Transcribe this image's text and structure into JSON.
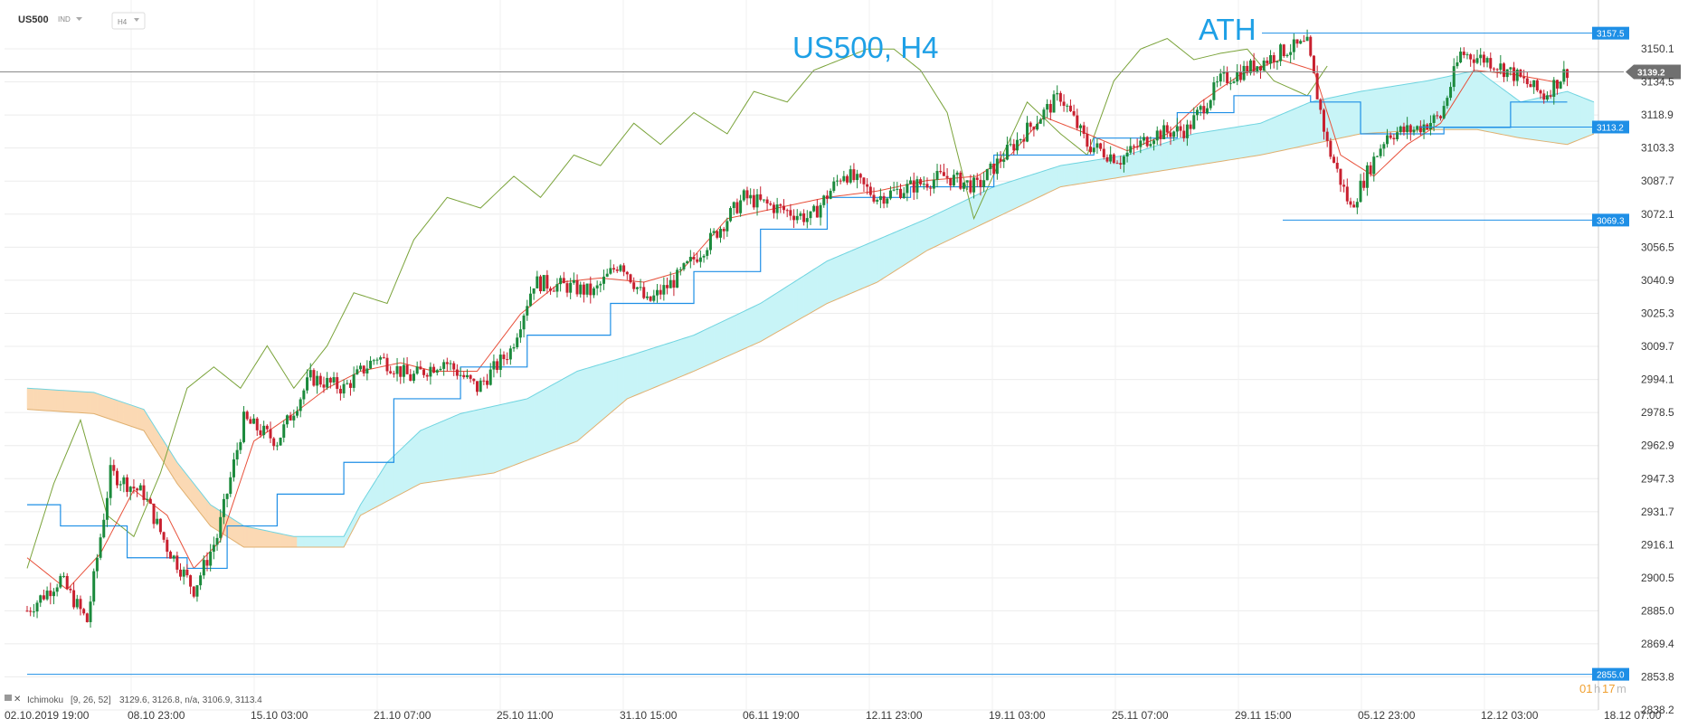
{
  "toolbar": {
    "symbol": "US500",
    "instrument_type": "IND",
    "timeframe": "H4"
  },
  "annotations": {
    "title": "US500, H4",
    "ath": "ATH"
  },
  "legend": {
    "indicator": "Ichimoku",
    "params": "[9, 26, 52]",
    "values": "3129.6,  3126.8,  n/a,  3106.9,  3113.4"
  },
  "countdown": {
    "hours": "01",
    "h_unit": "h",
    "minutes": "17",
    "m_unit": "m"
  },
  "colors": {
    "up_candle": "#1b8a3c",
    "down_candle": "#c8202f",
    "tenkan": "#e8503a",
    "kijun": "#1e8fe6",
    "chikou": "#7aa33a",
    "cloud_bull": "#c8f4f7",
    "cloud_bear": "#fbd9b4",
    "span_a": "#6fd4e0",
    "span_b": "#e0b070",
    "level_line": "#1e8fe6",
    "price_tag": "#1e8fe6",
    "current_tag": "#707070",
    "title": "#1ea0e6"
  },
  "chart_data": {
    "type": "candlestick",
    "title": "US500, H4",
    "yticks": [
      3150.1,
      3134.5,
      3118.9,
      3103.3,
      3087.7,
      3072.1,
      3056.5,
      3040.9,
      3025.3,
      3009.7,
      2994.1,
      2978.5,
      2962.9,
      2947.3,
      2931.7,
      2916.1,
      2900.5,
      2885.0,
      2869.4,
      2853.8,
      2838.2
    ],
    "ylim": [
      2838.2,
      3150.1
    ],
    "x_date_labels": [
      "02.10.2019  19:00",
      "08.10  23:00",
      "15.10  03:00",
      "21.10  07:00",
      "25.10  11:00",
      "31.10  15:00",
      "06.11  19:00",
      "12.11  23:00",
      "19.11  03:00",
      "25.11  07:00",
      "29.11  15:00",
      "05.12  23:00",
      "12.12  03:00",
      "18.12  07:00"
    ],
    "current_price": 3139.2,
    "horizontal_levels": [
      3157.5,
      3113.2,
      3069.3,
      2855.0
    ],
    "close_path": [
      [
        0,
        2885
      ],
      [
        10,
        2900
      ],
      [
        18,
        2880
      ],
      [
        25,
        2950
      ],
      [
        35,
        2940
      ],
      [
        42,
        2915
      ],
      [
        50,
        2895
      ],
      [
        57,
        2920
      ],
      [
        65,
        2975
      ],
      [
        75,
        2965
      ],
      [
        85,
        2995
      ],
      [
        95,
        2990
      ],
      [
        105,
        3005
      ],
      [
        115,
        2995
      ],
      [
        125,
        3003
      ],
      [
        135,
        2990
      ],
      [
        145,
        3008
      ],
      [
        152,
        3040
      ],
      [
        162,
        3038
      ],
      [
        170,
        3035
      ],
      [
        178,
        3050
      ],
      [
        186,
        3030
      ],
      [
        195,
        3042
      ],
      [
        205,
        3060
      ],
      [
        215,
        3080
      ],
      [
        225,
        3075
      ],
      [
        235,
        3070
      ],
      [
        245,
        3092
      ],
      [
        255,
        3080
      ],
      [
        265,
        3085
      ],
      [
        275,
        3090
      ],
      [
        285,
        3085
      ],
      [
        292,
        3098
      ],
      [
        300,
        3112
      ],
      [
        310,
        3128
      ],
      [
        318,
        3105
      ],
      [
        328,
        3098
      ],
      [
        338,
        3110
      ],
      [
        348,
        3112
      ],
      [
        358,
        3135
      ],
      [
        368,
        3142
      ],
      [
        378,
        3150
      ],
      [
        384,
        3152
      ],
      [
        390,
        3105
      ],
      [
        397,
        3075
      ],
      [
        403,
        3095
      ],
      [
        408,
        3110
      ],
      [
        416,
        3112
      ],
      [
        424,
        3118
      ],
      [
        430,
        3148
      ],
      [
        438,
        3145
      ],
      [
        446,
        3138
      ],
      [
        455,
        3128
      ],
      [
        462,
        3140
      ]
    ],
    "tenkan_path": [
      [
        0,
        2910
      ],
      [
        12,
        2895
      ],
      [
        22,
        2912
      ],
      [
        32,
        2942
      ],
      [
        42,
        2930
      ],
      [
        50,
        2905
      ],
      [
        58,
        2918
      ],
      [
        68,
        2965
      ],
      [
        80,
        2978
      ],
      [
        90,
        2990
      ],
      [
        100,
        2998
      ],
      [
        112,
        3002
      ],
      [
        122,
        2998
      ],
      [
        135,
        2998
      ],
      [
        148,
        3025
      ],
      [
        160,
        3040
      ],
      [
        172,
        3042
      ],
      [
        185,
        3040
      ],
      [
        196,
        3045
      ],
      [
        210,
        3070
      ],
      [
        225,
        3075
      ],
      [
        240,
        3080
      ],
      [
        255,
        3083
      ],
      [
        270,
        3088
      ],
      [
        285,
        3090
      ],
      [
        295,
        3100
      ],
      [
        305,
        3118
      ],
      [
        318,
        3110
      ],
      [
        330,
        3102
      ],
      [
        342,
        3110
      ],
      [
        352,
        3125
      ],
      [
        364,
        3138
      ],
      [
        376,
        3145
      ],
      [
        386,
        3140
      ],
      [
        394,
        3100
      ],
      [
        404,
        3090
      ],
      [
        414,
        3105
      ],
      [
        424,
        3115
      ],
      [
        434,
        3140
      ],
      [
        446,
        3138
      ],
      [
        460,
        3134
      ]
    ],
    "kijun_path": [
      [
        0,
        2935
      ],
      [
        10,
        2935
      ],
      [
        10,
        2925
      ],
      [
        30,
        2925
      ],
      [
        30,
        2910
      ],
      [
        48,
        2910
      ],
      [
        48,
        2905
      ],
      [
        60,
        2905
      ],
      [
        60,
        2925
      ],
      [
        75,
        2925
      ],
      [
        75,
        2940
      ],
      [
        95,
        2940
      ],
      [
        95,
        2955
      ],
      [
        110,
        2955
      ],
      [
        110,
        2985
      ],
      [
        130,
        2985
      ],
      [
        130,
        3000
      ],
      [
        150,
        3000
      ],
      [
        150,
        3015
      ],
      [
        175,
        3015
      ],
      [
        175,
        3030
      ],
      [
        200,
        3030
      ],
      [
        200,
        3045
      ],
      [
        220,
        3045
      ],
      [
        220,
        3065
      ],
      [
        240,
        3065
      ],
      [
        240,
        3080
      ],
      [
        265,
        3080
      ],
      [
        265,
        3085
      ],
      [
        290,
        3085
      ],
      [
        290,
        3100
      ],
      [
        320,
        3100
      ],
      [
        320,
        3108
      ],
      [
        345,
        3108
      ],
      [
        345,
        3120
      ],
      [
        362,
        3120
      ],
      [
        362,
        3128
      ],
      [
        385,
        3128
      ],
      [
        385,
        3125
      ],
      [
        400,
        3125
      ],
      [
        400,
        3110
      ],
      [
        425,
        3110
      ],
      [
        425,
        3113
      ],
      [
        445,
        3113
      ],
      [
        445,
        3125
      ],
      [
        462,
        3125
      ]
    ],
    "chikou_path": [
      [
        0,
        2905
      ],
      [
        8,
        2945
      ],
      [
        16,
        2975
      ],
      [
        24,
        2930
      ],
      [
        32,
        2920
      ],
      [
        40,
        2950
      ],
      [
        48,
        2990
      ],
      [
        56,
        3000
      ],
      [
        64,
        2990
      ],
      [
        72,
        3010
      ],
      [
        80,
        2990
      ],
      [
        90,
        3010
      ],
      [
        98,
        3035
      ],
      [
        108,
        3030
      ],
      [
        116,
        3060
      ],
      [
        126,
        3080
      ],
      [
        136,
        3075
      ],
      [
        146,
        3090
      ],
      [
        154,
        3080
      ],
      [
        164,
        3100
      ],
      [
        172,
        3095
      ],
      [
        182,
        3115
      ],
      [
        190,
        3105
      ],
      [
        200,
        3120
      ],
      [
        210,
        3110
      ],
      [
        218,
        3130
      ],
      [
        228,
        3125
      ],
      [
        236,
        3140
      ],
      [
        244,
        3145
      ],
      [
        252,
        3150
      ],
      [
        260,
        3150
      ],
      [
        268,
        3140
      ],
      [
        276,
        3120
      ],
      [
        284,
        3070
      ],
      [
        292,
        3098
      ],
      [
        300,
        3125
      ],
      [
        310,
        3110
      ],
      [
        318,
        3100
      ],
      [
        326,
        3135
      ],
      [
        334,
        3150
      ],
      [
        342,
        3155
      ],
      [
        350,
        3145
      ],
      [
        358,
        3148
      ],
      [
        366,
        3150
      ],
      [
        374,
        3135
      ],
      [
        384,
        3128
      ],
      [
        390,
        3142
      ]
    ],
    "cloud_span_a": [
      [
        0,
        2990
      ],
      [
        20,
        2988
      ],
      [
        35,
        2980
      ],
      [
        45,
        2955
      ],
      [
        55,
        2935
      ],
      [
        65,
        2925
      ],
      [
        80,
        2920
      ],
      [
        95,
        2920
      ],
      [
        100,
        2935
      ],
      [
        108,
        2955
      ],
      [
        118,
        2970
      ],
      [
        130,
        2978
      ],
      [
        150,
        2985
      ],
      [
        165,
        2998
      ],
      [
        180,
        3005
      ],
      [
        200,
        3015
      ],
      [
        220,
        3030
      ],
      [
        240,
        3050
      ],
      [
        255,
        3060
      ],
      [
        270,
        3070
      ],
      [
        290,
        3085
      ],
      [
        310,
        3095
      ],
      [
        330,
        3100
      ],
      [
        350,
        3110
      ],
      [
        370,
        3115
      ],
      [
        385,
        3125
      ],
      [
        400,
        3130
      ],
      [
        420,
        3135
      ],
      [
        435,
        3140
      ],
      [
        448,
        3125
      ],
      [
        462,
        3130
      ],
      [
        470,
        3125
      ]
    ],
    "cloud_span_b": [
      [
        0,
        2980
      ],
      [
        20,
        2978
      ],
      [
        35,
        2970
      ],
      [
        45,
        2945
      ],
      [
        55,
        2925
      ],
      [
        65,
        2915
      ],
      [
        80,
        2915
      ],
      [
        95,
        2915
      ],
      [
        100,
        2930
      ],
      [
        118,
        2945
      ],
      [
        140,
        2950
      ],
      [
        165,
        2965
      ],
      [
        180,
        2985
      ],
      [
        200,
        2998
      ],
      [
        220,
        3012
      ],
      [
        240,
        3030
      ],
      [
        255,
        3040
      ],
      [
        270,
        3055
      ],
      [
        290,
        3070
      ],
      [
        310,
        3085
      ],
      [
        330,
        3090
      ],
      [
        350,
        3095
      ],
      [
        370,
        3100
      ],
      [
        385,
        3105
      ],
      [
        400,
        3110
      ],
      [
        420,
        3112
      ],
      [
        435,
        3112
      ],
      [
        448,
        3108
      ],
      [
        462,
        3105
      ],
      [
        470,
        3110
      ]
    ]
  }
}
